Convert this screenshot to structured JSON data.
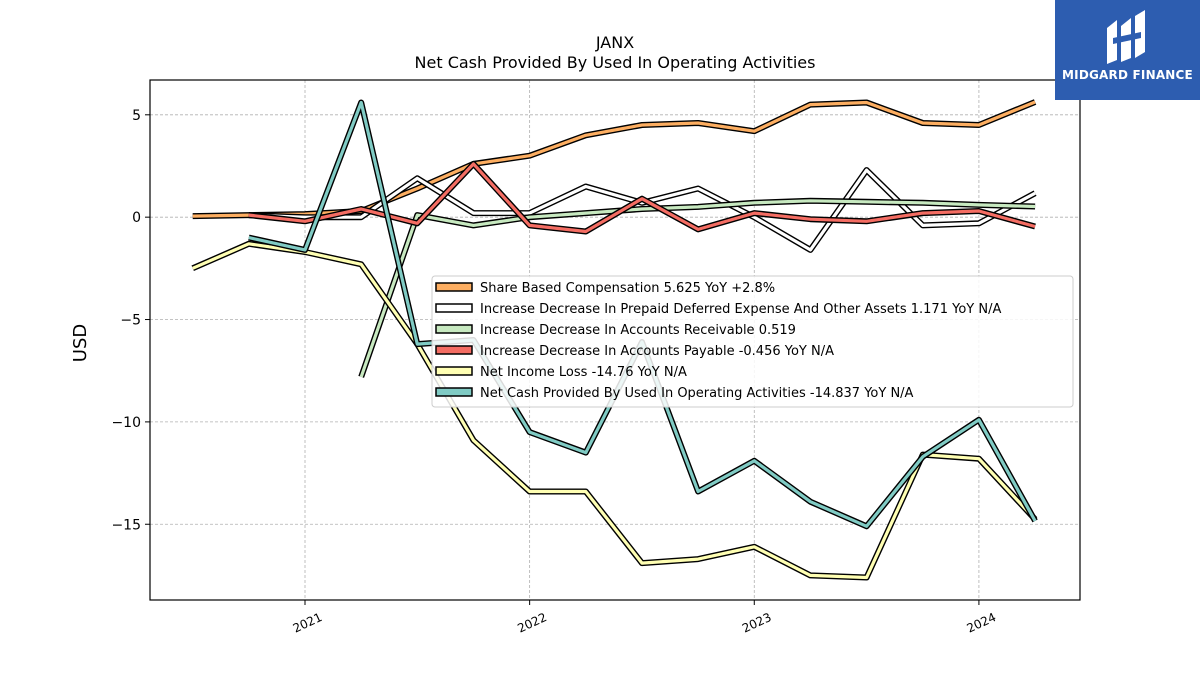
{
  "brand": {
    "name": "MIDGARD FINANCE",
    "logo_icon": "midgard-logo-icon",
    "color": "#2d5db0"
  },
  "chart_data": {
    "type": "line",
    "title": "JANX",
    "subtitle": "Net Cash Provided By Used In Operating Activities",
    "ylabel": "USD",
    "xlabel": "",
    "xlim": [
      2020.31,
      2024.45
    ],
    "ylim": [
      -18.7,
      6.7
    ],
    "yticks": [
      5,
      0,
      -5,
      -10,
      -15
    ],
    "ytick_labels": [
      "5",
      "0",
      "−5",
      "−10",
      "−15"
    ],
    "xticks": [
      2021,
      2022,
      2023,
      2024
    ],
    "xtick_labels": [
      "2021",
      "2022",
      "2023",
      "2024"
    ],
    "grid": true,
    "legend_position": "center-right",
    "series": [
      {
        "name": "Share Based Compensation",
        "legend_label": "Share Based Compensation  5.625 YoY +2.8%",
        "color": "#fdae61",
        "x": [
          2020.5,
          2020.75,
          2021.0,
          2021.25,
          2021.5,
          2021.75,
          2022.0,
          2022.25,
          2022.5,
          2022.75,
          2023.0,
          2023.25,
          2023.5,
          2023.75,
          2024.0,
          2024.25
        ],
        "values": [
          0.05,
          0.1,
          0.15,
          0.3,
          1.4,
          2.6,
          3.0,
          4.0,
          4.5,
          4.6,
          4.2,
          5.5,
          5.6,
          4.6,
          4.5,
          5.625
        ]
      },
      {
        "name": "Increase Decrease In Prepaid Deferred Expense And Other Assets",
        "legend_label": "Increase Decrease In Prepaid Deferred Expense And Other Assets  1.171 YoY N/A",
        "color": "#ffffff",
        "x": [
          2020.75,
          2021.0,
          2021.25,
          2021.5,
          2021.75,
          2022.0,
          2022.25,
          2022.5,
          2022.75,
          2023.0,
          2023.25,
          2023.5,
          2023.75,
          2024.0,
          2024.25
        ],
        "values": [
          0.1,
          0.0,
          0.0,
          1.9,
          0.2,
          0.2,
          1.5,
          0.7,
          1.4,
          0.0,
          -1.6,
          2.3,
          -0.4,
          -0.3,
          1.171
        ]
      },
      {
        "name": "Increase Decrease In Accounts Receivable",
        "legend_label": "Increase Decrease In Accounts Receivable  0.519",
        "color": "#c7e9c0",
        "x": [
          2021.25,
          2021.5,
          2021.75,
          2022.0,
          2022.25,
          2022.5,
          2022.75,
          2023.0,
          2023.25,
          2023.5,
          2023.75,
          2024.0,
          2024.25
        ],
        "values": [
          -7.8,
          0.1,
          -0.4,
          0.0,
          0.2,
          0.4,
          0.5,
          0.7,
          0.8,
          0.75,
          0.7,
          0.6,
          0.519
        ]
      },
      {
        "name": "Increase Decrease In Accounts Payable",
        "legend_label": "Increase Decrease In Accounts Payable  -0.456 YoY N/A",
        "color": "#f46d63",
        "x": [
          2020.75,
          2021.0,
          2021.25,
          2021.5,
          2021.75,
          2022.0,
          2022.25,
          2022.5,
          2022.75,
          2023.0,
          2023.25,
          2023.5,
          2023.75,
          2024.0,
          2024.25
        ],
        "values": [
          0.1,
          -0.2,
          0.4,
          -0.3,
          2.6,
          -0.4,
          -0.7,
          0.9,
          -0.6,
          0.2,
          -0.1,
          -0.2,
          0.2,
          0.3,
          -0.456
        ]
      },
      {
        "name": "Net Income Loss",
        "legend_label": "Net Income Loss  -14.76 YoY N/A",
        "color": "#ffffb3",
        "x": [
          2020.5,
          2020.75,
          2021.0,
          2021.25,
          2021.5,
          2021.75,
          2022.0,
          2022.25,
          2022.5,
          2022.75,
          2023.0,
          2023.25,
          2023.5,
          2023.75,
          2024.0,
          2024.25
        ],
        "values": [
          -2.5,
          -1.3,
          -1.7,
          -2.3,
          -6.2,
          -10.9,
          -13.4,
          -13.4,
          -16.9,
          -16.7,
          -16.1,
          -17.5,
          -17.6,
          -11.6,
          -11.8,
          -14.76
        ]
      },
      {
        "name": "Net Cash Provided By Used In Operating Activities",
        "legend_label": "Net Cash Provided By Used In Operating Activities  -14.837 YoY N/A",
        "color": "#80cbc4",
        "x": [
          2020.75,
          2021.0,
          2021.25,
          2021.5,
          2021.75,
          2022.0,
          2022.25,
          2022.5,
          2022.75,
          2023.0,
          2023.25,
          2023.5,
          2023.75,
          2024.0,
          2024.25
        ],
        "values": [
          -1.0,
          -1.6,
          5.6,
          -6.2,
          -6.0,
          -10.5,
          -11.5,
          -6.1,
          -13.4,
          -11.9,
          -13.9,
          -15.1,
          -11.7,
          -9.9,
          -14.837
        ]
      }
    ]
  }
}
